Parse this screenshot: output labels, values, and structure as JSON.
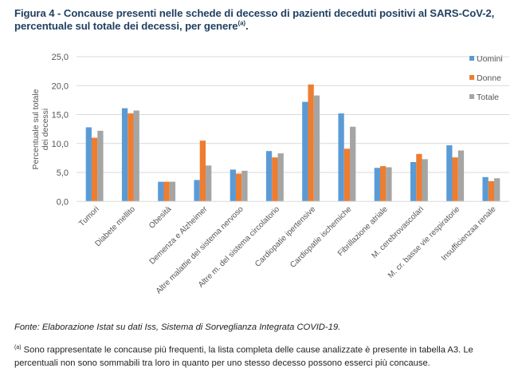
{
  "figure": {
    "title_line1": "Figura 4 - Concause presenti nelle schede di decesso di pazienti deceduti positivi al SARS-CoV-2,",
    "title_line2": "percentuale sul totale dei decessi, per genere",
    "title_sup": "(a)",
    "title_end": ".",
    "source": "Fonte: Elaborazione Istat su dati Iss, Sistema di Sorveglianza Integrata COVID-19.",
    "note_sup": "(a)",
    "note": " Sono rappresentate le concause più frequenti, la lista completa delle cause analizzate è presente in tabella A3. Le percentuali non sono sommabili tra loro in quanto per uno stesso decesso possono esserci più concause."
  },
  "chart_data": {
    "type": "bar",
    "title": "",
    "xlabel": "",
    "ylabel": "Percentuale sul totale dei decessi",
    "ylabel_lines": [
      "Percentuale  sul totale",
      "dei decessi"
    ],
    "ylim": [
      0,
      25
    ],
    "yticks": [
      0,
      5,
      10,
      15,
      20,
      25
    ],
    "ytick_labels": [
      "0,0",
      "5,0",
      "10,0",
      "15,0",
      "20,0",
      "25,0"
    ],
    "grid": true,
    "legend_position": "right",
    "categories": [
      "Tumori",
      "Diabete mellito",
      "Obesità",
      "Demenza e Alzheimer",
      "Altre malattie del sistema nervoso",
      "Altre m. del sistema circolatorio",
      "Cardiopatie ipertensive",
      "Cardiopatie ischemiche",
      "Fibrillazione atriale",
      "M. cerebrovascolari",
      "M. cr.  basse vie respiratorie",
      "Insufficienzaa renale"
    ],
    "series": [
      {
        "name": "Uomini",
        "color": "#5B9BD5",
        "values": [
          12.8,
          16.1,
          3.4,
          3.7,
          5.5,
          8.7,
          17.2,
          15.2,
          5.8,
          6.8,
          9.7,
          4.2
        ]
      },
      {
        "name": "Donne",
        "color": "#ED7D31",
        "values": [
          11.0,
          15.2,
          3.4,
          10.5,
          4.8,
          7.6,
          20.2,
          9.1,
          6.1,
          8.2,
          7.6,
          3.5
        ]
      },
      {
        "name": "Totale",
        "color": "#A5A5A5",
        "values": [
          12.2,
          15.7,
          3.4,
          6.2,
          5.3,
          8.3,
          18.3,
          12.9,
          5.9,
          7.3,
          8.8,
          4.0
        ]
      }
    ]
  }
}
